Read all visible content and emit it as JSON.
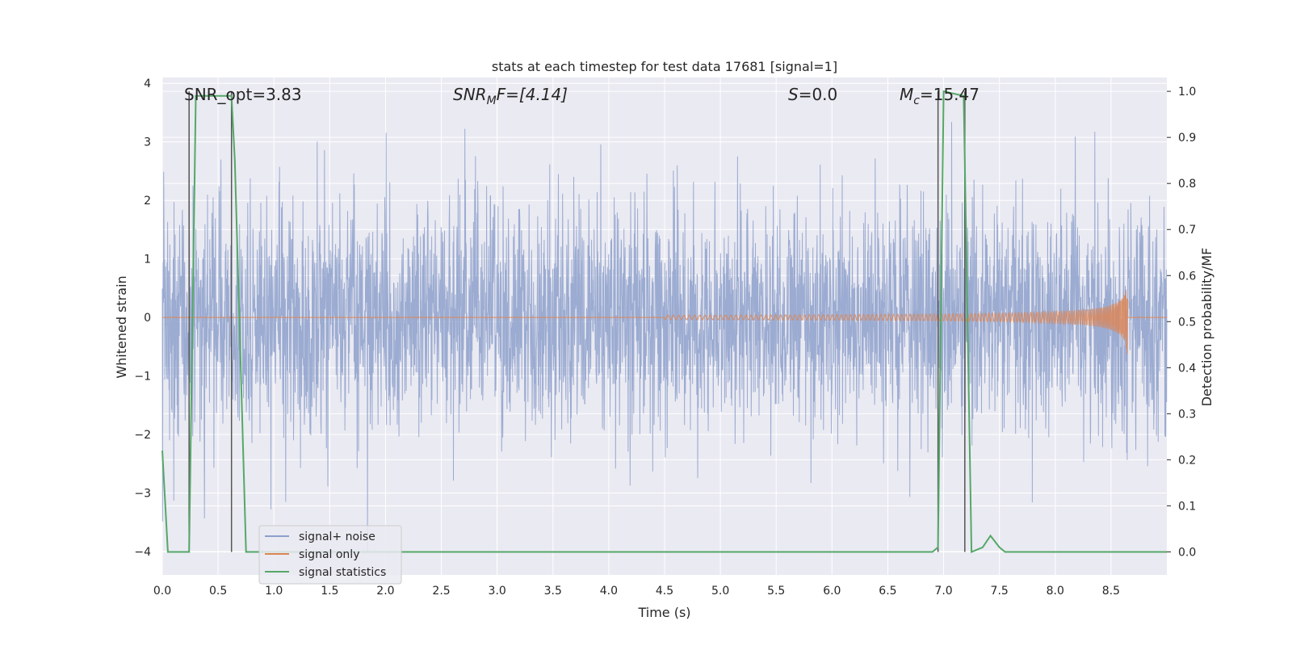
{
  "chart_data": {
    "type": "line",
    "title": "stats at each timestep for test data 17681 [signal=1]",
    "xlabel": "Time (s)",
    "ylabel": "Whitened strain",
    "ylabel_right": "Detection probability/MF",
    "xlim": [
      0.0,
      9.0
    ],
    "ylim": [
      -4.4,
      4.1
    ],
    "ylim_right": [
      -0.05,
      1.03
    ],
    "x_ticks": [
      "0.0",
      "0.5",
      "1.0",
      "1.5",
      "2.0",
      "2.5",
      "3.0",
      "3.5",
      "4.0",
      "4.5",
      "5.0",
      "5.5",
      "6.0",
      "6.5",
      "7.0",
      "7.5",
      "8.0",
      "8.5"
    ],
    "y_ticks": [
      "4",
      "3",
      "2",
      "1",
      "0",
      "−1",
      "−2",
      "−3",
      "−4"
    ],
    "y_ticks_right": [
      "1.0",
      "0.9",
      "0.8",
      "0.7",
      "0.6",
      "0.5",
      "0.4",
      "0.3",
      "0.2",
      "0.1",
      "0.0"
    ],
    "annotations": {
      "snr_opt": "SNR_opt=3.83",
      "snr_mf_prefix": "SNR",
      "snr_mf_sub": "M",
      "snr_mf_suffix": "F=[4.14]",
      "s_stat_prefix": "S",
      "s_stat_suffix": "=0.0",
      "mc_prefix": "M",
      "mc_sub": "c",
      "mc_suffix": "=15.47"
    },
    "legend": {
      "position": "lower-left",
      "entries": [
        "signal+ noise",
        "signal only",
        "signal statistics"
      ]
    },
    "colors": {
      "noise": "#8da0cb",
      "signal": "#dd8452",
      "stats": "#55a868",
      "vline": "#555555",
      "plot_bg": "#eaeaf2",
      "grid": "#ffffff"
    },
    "series": [
      {
        "name": "signal+ noise",
        "description_level": "whitened strain noise, approx std 0.9, range -4.0 to 3.9"
      },
      {
        "name": "signal only",
        "chirp_start": 4.5,
        "chirp_end": 8.65,
        "peak_amplitude": 0.7
      },
      {
        "name": "signal statistics",
        "x": [
          0.0,
          0.05,
          0.1,
          0.24,
          0.3,
          0.62,
          0.65,
          0.75,
          3.0,
          6.9,
          6.95,
          7.0,
          7.18,
          7.25,
          7.35,
          7.42,
          7.5,
          7.55,
          9.0
        ],
        "y": [
          0.22,
          0.0,
          0.0,
          0.0,
          0.99,
          0.99,
          0.85,
          0.0,
          0.0,
          0.0,
          0.01,
          1.0,
          0.99,
          0.0,
          0.01,
          0.035,
          0.01,
          0.0,
          0.0
        ]
      }
    ],
    "vertical_lines": [
      0.24,
      0.62,
      6.95,
      7.19
    ]
  }
}
